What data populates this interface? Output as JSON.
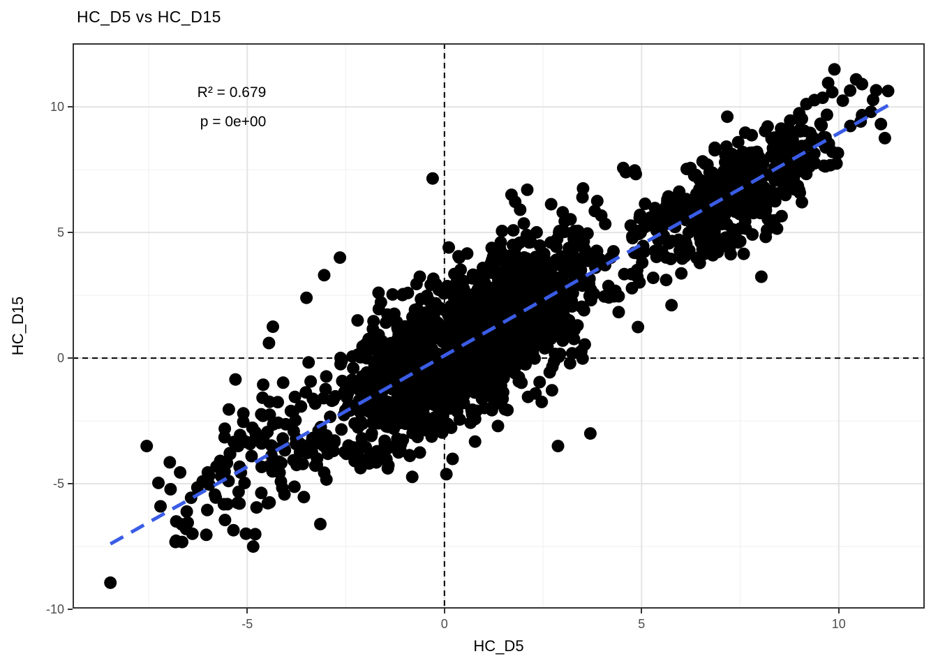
{
  "chart_data": {
    "type": "scatter",
    "title": "HC_D5 vs HC_D15",
    "xlabel": "HC_D5",
    "ylabel": "HC_D15",
    "stats": {
      "r_squared": 0.679,
      "p_value": "0e+00"
    },
    "annotations": [
      {
        "text": "R² = 0.679"
      },
      {
        "text": "p = 0e+00"
      }
    ],
    "x_axis": {
      "range": [
        -9.43,
        12.18
      ],
      "tick_values": [
        -5,
        0,
        5,
        10
      ],
      "tick_labels": [
        "-5",
        "0",
        "5",
        "10"
      ],
      "minor_ticks": [
        -7.5,
        -2.5,
        2.5,
        7.5
      ]
    },
    "y_axis": {
      "range": [
        -9.97,
        12.53
      ],
      "tick_values": [
        -10,
        -5,
        0,
        5,
        10
      ],
      "tick_labels": [
        "-10",
        "-5",
        "0",
        "5",
        "10"
      ],
      "minor_ticks": [
        -7.5,
        -2.5,
        2.5,
        7.5
      ]
    },
    "grid": {
      "major_color": "#e3e3e3",
      "minor_color": "#efefef",
      "major_width": 2,
      "minor_width": 1
    },
    "panel": {
      "background": "#ffffff",
      "border_color": "#333333",
      "border_width": 2
    },
    "reference_lines": [
      {
        "orientation": "vertical",
        "value": 0,
        "color": "#000000",
        "dash": [
          8,
          6
        ],
        "width": 2
      },
      {
        "orientation": "horizontal",
        "value": 0,
        "color": "#000000",
        "dash": [
          8,
          6
        ],
        "width": 2
      }
    ],
    "regression_line": {
      "slope": 0.885,
      "intercept": 0.1,
      "x_start": -8.47,
      "x_end": 11.25,
      "color": "#3a5ce6",
      "dash": [
        21,
        13
      ],
      "width": 5
    },
    "points_style": {
      "color": "#000000",
      "radius": 9,
      "approx_count": 1985
    },
    "point_generator": {
      "seed": 1337,
      "line": {
        "slope": 0.885,
        "intercept": 0.1
      },
      "y_clamp": [
        -9.0,
        11.55
      ],
      "clusters": [
        {
          "n": 1380,
          "x_mean": 0.55,
          "x_sd": 1.8,
          "x_range": [
            -5.35,
            5.2
          ],
          "noise_sd": 1.5
        },
        {
          "n": 470,
          "x_mean": 7.3,
          "x_sd": 1.3,
          "x_range": [
            4.7,
            11.25
          ],
          "noise_sd": 1.0
        },
        {
          "n": 100,
          "x_mean": -4.6,
          "x_sd": 1.2,
          "x_range": [
            -7.4,
            -2.5
          ],
          "noise_sd": 1.15
        }
      ]
    },
    "outlier_points": [
      [
        -8.47,
        -8.94
      ],
      [
        -7.55,
        -3.5
      ],
      [
        -7.2,
        -5.9
      ],
      [
        -6.8,
        -6.5
      ],
      [
        -6.55,
        -6.8
      ],
      [
        -6.82,
        -7.32
      ],
      [
        -6.0,
        -4.55
      ],
      [
        -5.8,
        -5.55
      ],
      [
        -5.35,
        -6.85
      ],
      [
        -4.85,
        -7.5
      ],
      [
        -5.3,
        -0.85
      ],
      [
        -5.1,
        -2.2
      ],
      [
        -4.45,
        0.6
      ],
      [
        -4.35,
        1.25
      ],
      [
        -3.5,
        2.4
      ],
      [
        -3.05,
        3.3
      ],
      [
        -2.65,
        4.0
      ],
      [
        -0.3,
        7.15
      ],
      [
        0.05,
        -4.62
      ],
      [
        2.88,
        -3.5
      ],
      [
        3.7,
        -3.0
      ],
      [
        1.7,
        6.5
      ],
      [
        2.1,
        6.7
      ],
      [
        3.0,
        5.8
      ],
      [
        3.5,
        6.4
      ],
      [
        4.6,
        7.4
      ],
      [
        6.6,
        4.15
      ],
      [
        7.2,
        4.62
      ],
      [
        8.55,
        5.65
      ],
      [
        9.89,
        11.49
      ],
      [
        10.44,
        11.09
      ],
      [
        11.25,
        10.63
      ],
      [
        10.87,
        10.28
      ],
      [
        9.73,
        10.95
      ],
      [
        9.59,
        10.36
      ]
    ],
    "text_colors": {
      "title": "#000000",
      "axis_titles": "#000000",
      "tick_labels": "#4d4d4d",
      "annotation": "#000000"
    }
  }
}
